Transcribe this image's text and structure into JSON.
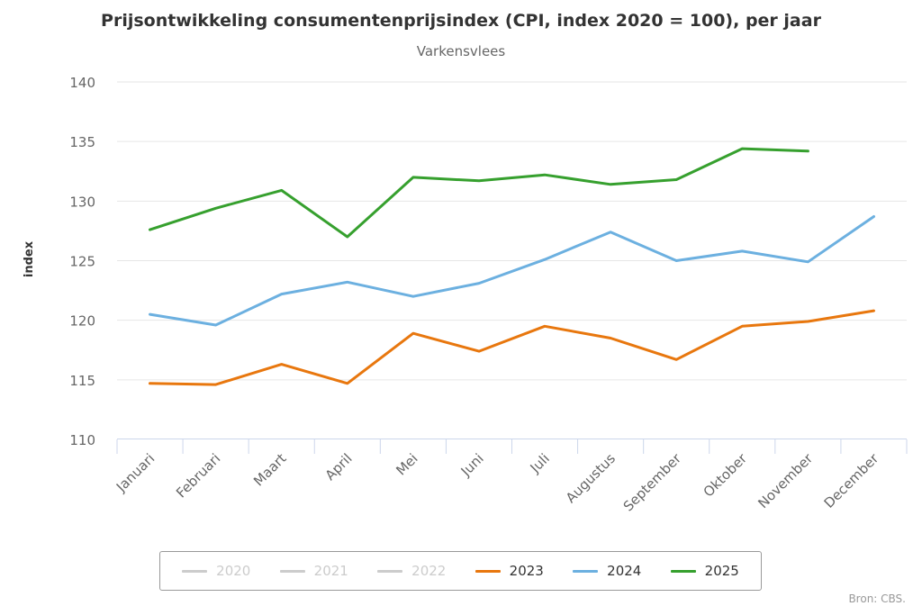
{
  "chart_data": {
    "type": "line",
    "title": "Prijsontwikkeling consumentenprijsindex (CPI, index 2020 = 100), per jaar",
    "subtitle": "Varkensvlees",
    "xlabel": "",
    "ylabel": "index",
    "ylim": [
      110,
      140
    ],
    "yticks": [
      110,
      115,
      120,
      125,
      130,
      135,
      140
    ],
    "grid": true,
    "legend_position": "bottom",
    "categories": [
      "Januari",
      "Februari",
      "Maart",
      "April",
      "Mei",
      "Juni",
      "Juli",
      "Augustus",
      "September",
      "Oktober",
      "November",
      "December"
    ],
    "series": [
      {
        "name": "2020",
        "visible": false,
        "color": "#cccccc",
        "values": []
      },
      {
        "name": "2021",
        "visible": false,
        "color": "#cccccc",
        "values": []
      },
      {
        "name": "2022",
        "visible": false,
        "color": "#cccccc",
        "values": []
      },
      {
        "name": "2023",
        "visible": true,
        "color": "#e8770e",
        "values": [
          114.7,
          114.6,
          116.3,
          114.7,
          118.9,
          117.4,
          119.5,
          118.5,
          116.7,
          119.5,
          119.9,
          120.8
        ]
      },
      {
        "name": "2024",
        "visible": true,
        "color": "#6cb0e0",
        "values": [
          120.5,
          119.6,
          122.2,
          123.2,
          122.0,
          123.1,
          125.1,
          127.4,
          125.0,
          125.8,
          124.9,
          128.7
        ]
      },
      {
        "name": "2025",
        "visible": true,
        "color": "#36a02e",
        "values": [
          127.6,
          129.4,
          130.9,
          127.0,
          132.0,
          131.7,
          132.2,
          131.4,
          131.8,
          134.4,
          134.2,
          null
        ]
      }
    ],
    "source": "Bron: CBS."
  }
}
